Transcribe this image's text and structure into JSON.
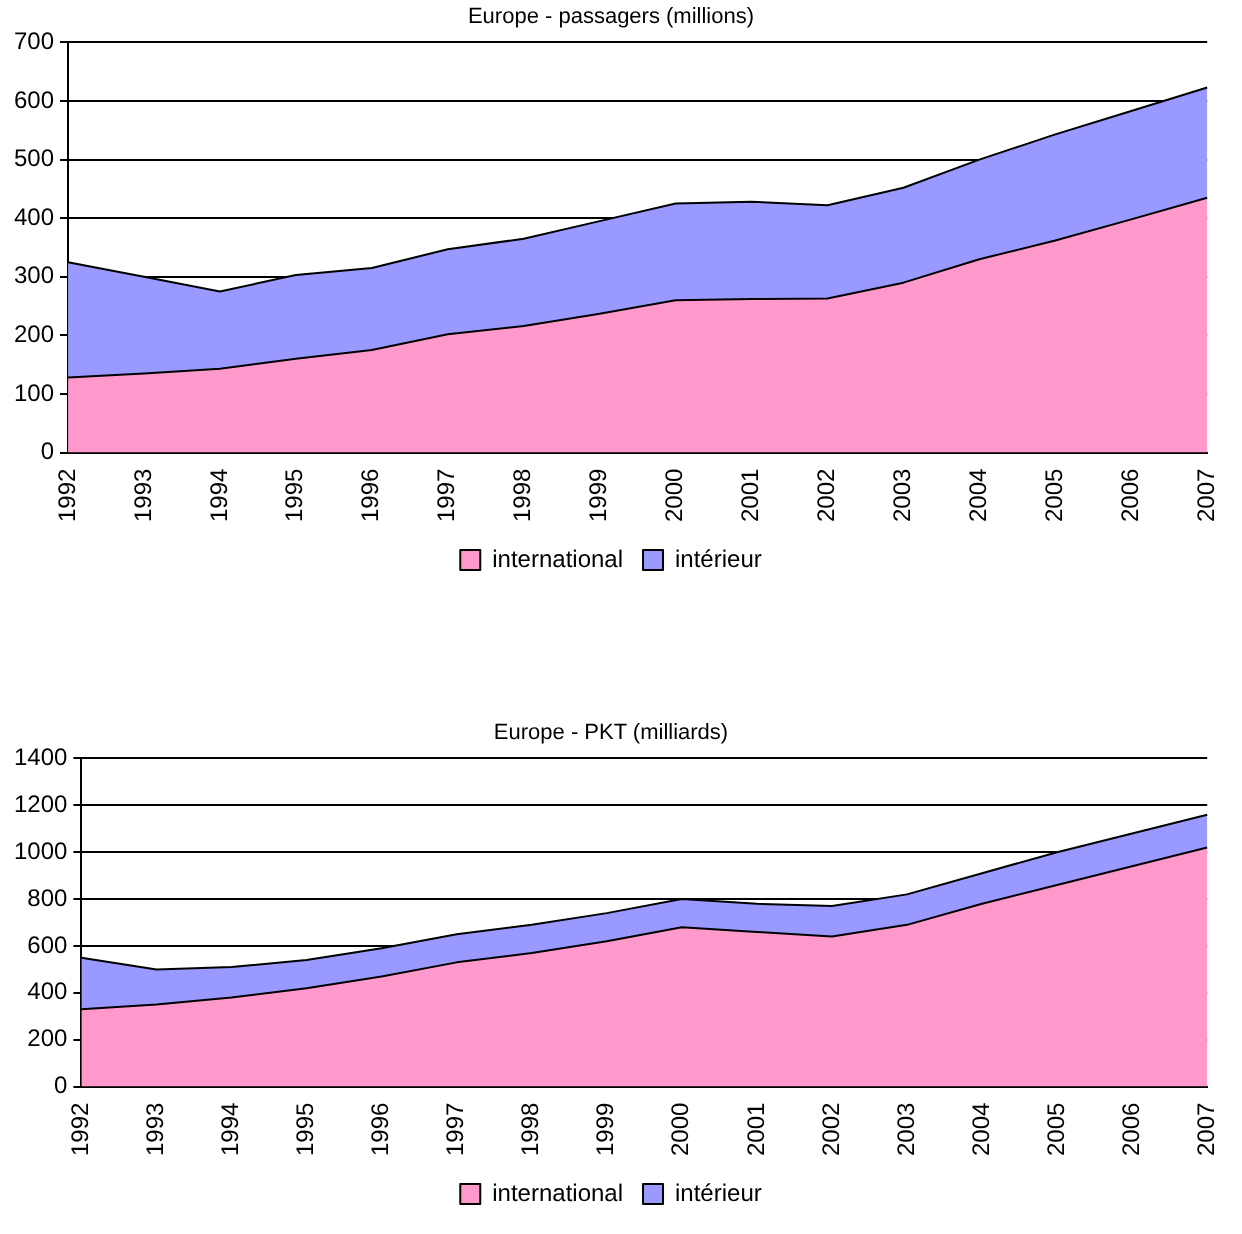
{
  "chart_data": [
    {
      "type": "area",
      "title": "Europe - passagers (millions)",
      "stacked": true,
      "legend": "bottom",
      "grid": "y",
      "categories": [
        "1992",
        "1993",
        "1994",
        "1995",
        "1996",
        "1997",
        "1998",
        "1999",
        "2000",
        "2001",
        "2002",
        "2003",
        "2004",
        "2005",
        "2006",
        "2007"
      ],
      "series": [
        {
          "name": "international",
          "color": "#ff99cc",
          "values": [
            128,
            135,
            143,
            160,
            175,
            202,
            216,
            237,
            260,
            262,
            263,
            290,
            330,
            362,
            398,
            435
          ]
        },
        {
          "name": "intérieur",
          "color": "#9999ff",
          "values": [
            197,
            165,
            132,
            143,
            140,
            145,
            149,
            158,
            165,
            166,
            159,
            162,
            170,
            181,
            185,
            188
          ]
        }
      ],
      "ylim": [
        0,
        700
      ],
      "yticks": [
        0,
        100,
        200,
        300,
        400,
        500,
        600,
        700
      ]
    },
    {
      "type": "area",
      "title": "Europe - PKT (milliards)",
      "stacked": true,
      "legend": "bottom",
      "grid": "y",
      "categories": [
        "1992",
        "1993",
        "1994",
        "1995",
        "1996",
        "1997",
        "1998",
        "1999",
        "2000",
        "2001",
        "2002",
        "2003",
        "2004",
        "2005",
        "2006",
        "2007"
      ],
      "series": [
        {
          "name": "international",
          "color": "#ff99cc",
          "values": [
            330,
            350,
            380,
            420,
            470,
            530,
            570,
            620,
            680,
            660,
            640,
            690,
            780,
            860,
            940,
            1020
          ]
        },
        {
          "name": "intérieur",
          "color": "#9999ff",
          "values": [
            220,
            150,
            130,
            120,
            120,
            120,
            120,
            120,
            120,
            120,
            130,
            130,
            130,
            140,
            140,
            140
          ]
        }
      ],
      "ylim": [
        0,
        1400
      ],
      "yticks": [
        0,
        200,
        400,
        600,
        800,
        1000,
        1200,
        1400
      ]
    }
  ]
}
